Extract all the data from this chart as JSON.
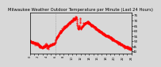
{
  "title": "Milwaukee Weather Outdoor Temperature per Minute (Last 24 Hours)",
  "line_color": "#ff0000",
  "background_color": "#d8d8d8",
  "plot_bg_color": "#d8d8d8",
  "vline_color": "#888888",
  "vline_x": 0.25,
  "ylim": [
    38,
    78
  ],
  "yticks": [
    40,
    45,
    50,
    55,
    60,
    65,
    70,
    75
  ],
  "num_points": 1440,
  "title_fontsize": 3.8,
  "tick_fontsize": 3.0,
  "marker_size": 0.8,
  "line_width": 0.5
}
